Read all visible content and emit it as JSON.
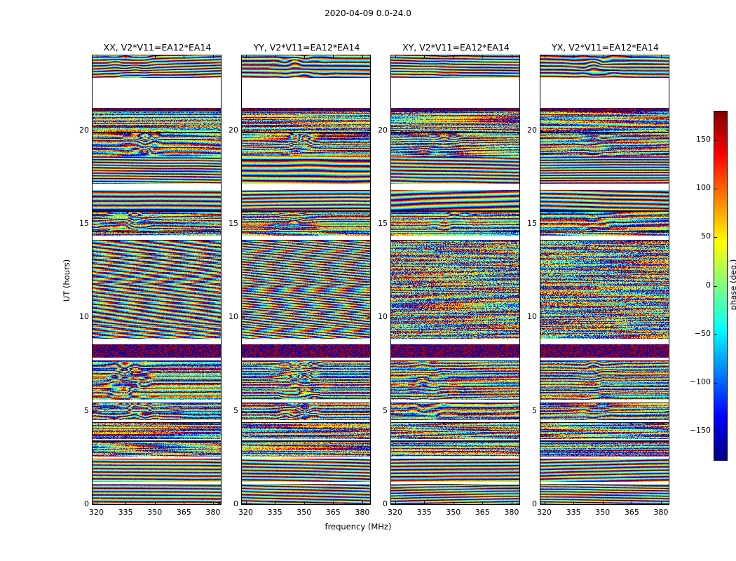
{
  "chart_data": {
    "type": "heatmap",
    "title": "2020-04-09 0.0-24.0",
    "xlabel": "frequency (MHz)",
    "ylabel": "UT (hours)",
    "xlim": [
      318,
      384
    ],
    "ylim": [
      0,
      24
    ],
    "xticks": [
      320,
      335,
      350,
      365,
      380
    ],
    "yticks": [
      0,
      5,
      10,
      15,
      20
    ],
    "panels": [
      {
        "id": "xx",
        "title": "XX, V2*V11=EA12*EA14"
      },
      {
        "id": "yy",
        "title": "YY, V2*V11=EA12*EA14"
      },
      {
        "id": "xy",
        "title": "XY, V2*V11=EA12*EA14"
      },
      {
        "id": "yx",
        "title": "YX, V2*V11=EA12*EA14"
      }
    ],
    "colorbar": {
      "label": "phase (deg.)",
      "lim": [
        -180,
        180
      ],
      "ticks": [
        150,
        100,
        50,
        0,
        -50,
        -100,
        -150
      ],
      "colormap": "jet"
    },
    "values_description": "wrapped interferometric visibility phase (deg.) versus frequency (x) and UT time (y); fine horizontal rainbow fringes, noisier target scans, saturated red/blue blobs near 335-355 MHz in XX/YY, white horizontal rows are gaps with no data",
    "time_segments": [
      {
        "t0": 0.0,
        "t1": 1.1,
        "type": "stripe"
      },
      {
        "t0": 1.2,
        "t1": 2.45,
        "type": "stripe"
      },
      {
        "t0": 2.55,
        "t1": 3.4,
        "type": "noisy"
      },
      {
        "t0": 3.5,
        "t1": 4.4,
        "type": "noisy"
      },
      {
        "t0": 4.5,
        "t1": 5.45,
        "type": "blob"
      },
      {
        "t0": 5.6,
        "t1": 7.7,
        "type": "blob"
      },
      {
        "t0": 7.85,
        "t1": 8.55,
        "type": "dense"
      },
      {
        "t0": 8.85,
        "t1": 14.15,
        "type": "fringe"
      },
      {
        "t0": 14.35,
        "t1": 14.6,
        "type": "noisy"
      },
      {
        "t0": 14.6,
        "t1": 15.7,
        "type": "blob"
      },
      {
        "t0": 15.7,
        "t1": 16.8,
        "type": "stripe"
      },
      {
        "t0": 17.15,
        "t1": 18.6,
        "type": "stripe"
      },
      {
        "t0": 18.6,
        "t1": 19.9,
        "type": "blob"
      },
      {
        "t0": 19.9,
        "t1": 21.05,
        "type": "noisy"
      },
      {
        "t0": 21.05,
        "t1": 21.2,
        "type": "dense"
      },
      {
        "t0": 22.8,
        "t1": 24.0,
        "type": "stripe",
        "blob": 0.5
      }
    ],
    "gaps": [
      [
        1.1,
        1.2
      ],
      [
        2.45,
        2.55
      ],
      [
        3.4,
        3.5
      ],
      [
        4.4,
        4.5
      ],
      [
        5.45,
        5.6
      ],
      [
        7.7,
        7.85
      ],
      [
        8.55,
        8.85
      ],
      [
        14.15,
        14.35
      ],
      [
        16.8,
        17.15
      ],
      [
        21.2,
        22.8
      ]
    ]
  }
}
